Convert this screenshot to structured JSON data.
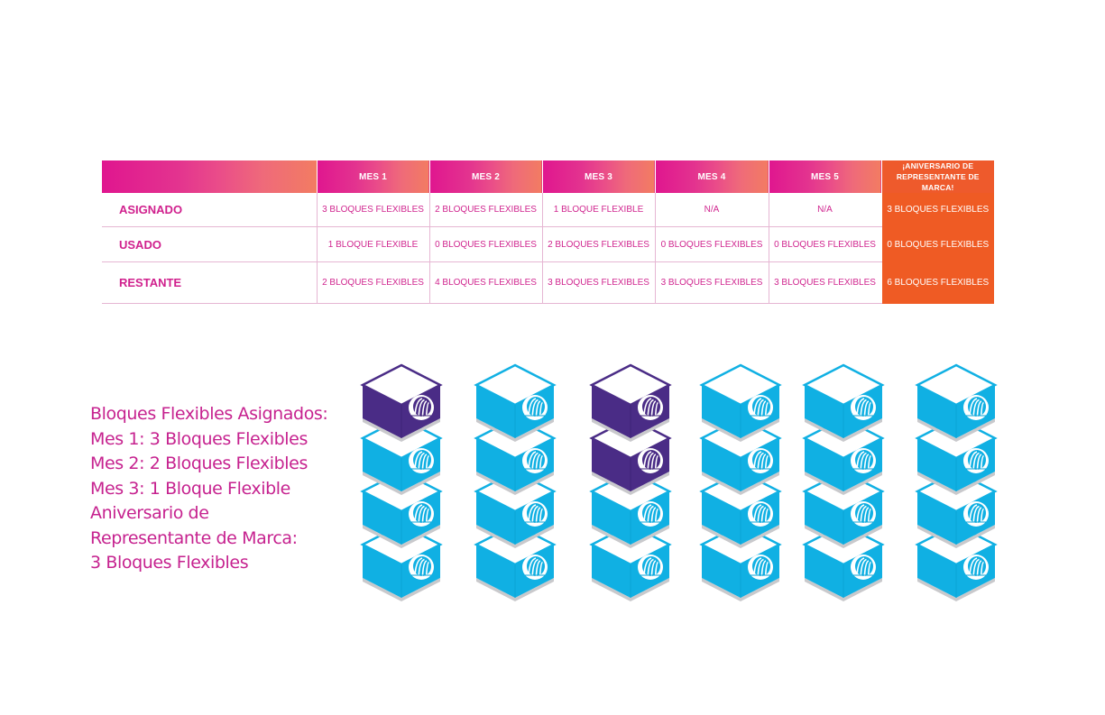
{
  "table": {
    "columns": [
      "MES 1",
      "MES 2",
      "MES 3",
      "MES 4",
      "MES 5"
    ],
    "anniversary_header": [
      "¡ANIVERSARIO DE",
      "REPRESENTANTE DE MARCA!"
    ],
    "rows": [
      {
        "label": "ASIGNADO",
        "cells": [
          "3 BLOQUES FLEXIBLES",
          "2 BLOQUES FLEXIBLES",
          "1 BLOQUE FLEXIBLE",
          "N/A",
          "N/A",
          "3 BLOQUES FLEXIBLES"
        ]
      },
      {
        "label": "USADO",
        "cells": [
          "1 BLOQUE FLEXIBLE",
          "0 BLOQUES FLEXIBLES",
          "2 BLOQUES FLEXIBLES",
          "0 BLOQUES FLEXIBLES",
          "0 BLOQUES FLEXIBLES",
          "0 BLOQUES FLEXIBLES"
        ]
      },
      {
        "label": "RESTANTE",
        "cells": [
          "2 BLOQUES FLEXIBLES",
          "4 BLOQUES FLEXIBLES",
          "3 BLOQUES FLEXIBLES",
          "3 BLOQUES FLEXIBLES",
          "3 BLOQUES FLEXIBLES",
          "6 BLOQUES FLEXIBLES"
        ]
      }
    ]
  },
  "legend": {
    "lines": [
      "Bloques Flexibles Asignados:",
      "Mes 1: 3 Bloques Flexibles",
      "Mes 2: 2 Bloques Flexibles",
      "Mes 3: 1 Bloque Flexible",
      "Aniversario de",
      "Representante de Marca:",
      "3 Bloques Flexibles"
    ]
  },
  "stacks": [
    {
      "blocks": [
        "used",
        "available",
        "available",
        "available"
      ]
    },
    {
      "blocks": [
        "available",
        "available",
        "available",
        "available"
      ]
    },
    {
      "blocks": [
        "used",
        "used",
        "available",
        "available"
      ]
    },
    {
      "blocks": [
        "available",
        "available",
        "available",
        "available"
      ]
    },
    {
      "blocks": [
        "available",
        "available",
        "available",
        "available"
      ]
    },
    {
      "blocks": [
        "available",
        "available",
        "available",
        "available"
      ]
    }
  ],
  "colors": {
    "available": "#10b0e3",
    "available_top": "#ffffff",
    "available_edge": "#0aa3d6",
    "used": "#4a2c86",
    "used_edge": "#3f2478",
    "logo": "#ffffff",
    "accent_orange": "#ef5b24",
    "accent_magenta": "#e0168f"
  },
  "icon": "brand-logo-icon"
}
